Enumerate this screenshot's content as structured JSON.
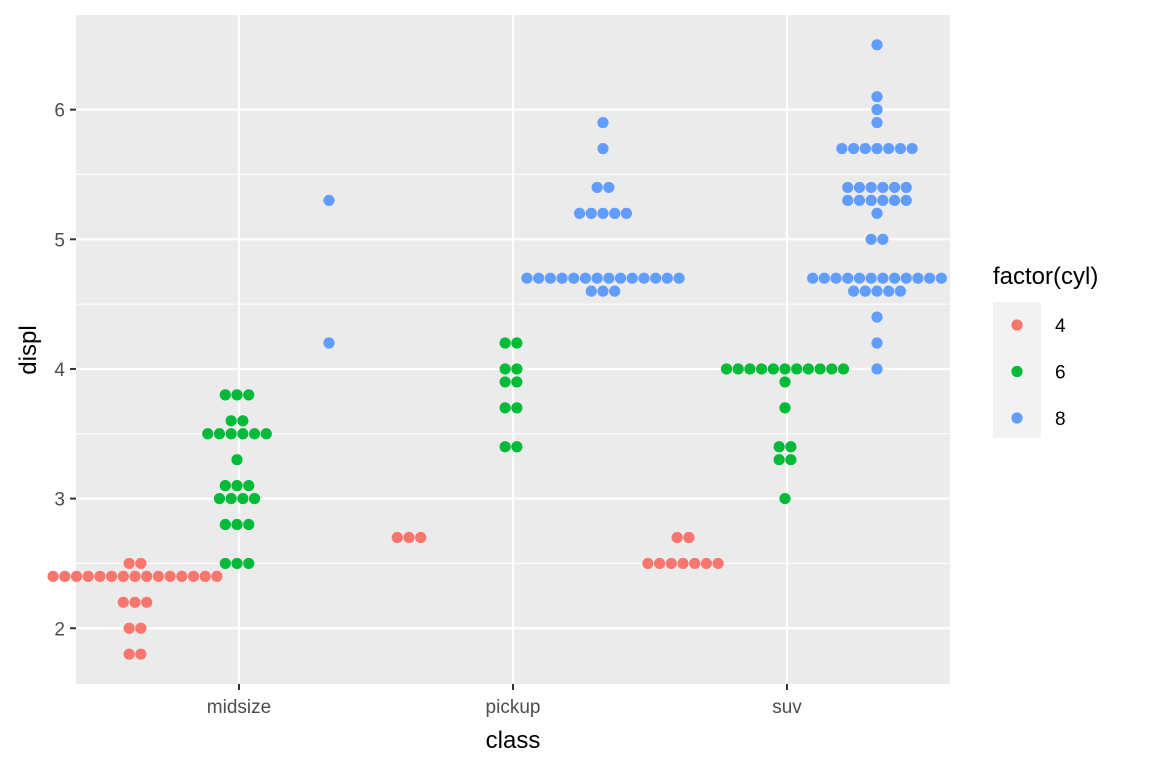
{
  "chart_data": {
    "type": "scatter",
    "subtype": "dotplot",
    "title": "",
    "xlabel": "class",
    "ylabel": "displ",
    "categories": [
      "midsize",
      "pickup",
      "suv"
    ],
    "ylim": [
      1.57,
      6.73
    ],
    "yticks": [
      2,
      3,
      4,
      5,
      6
    ],
    "ytick_labels": [
      "2",
      "3",
      "4",
      "5",
      "6"
    ],
    "grid": true,
    "legend": {
      "title": "factor(cyl)",
      "position": "right",
      "entries": [
        {
          "label": "4",
          "color": "#F8766D"
        },
        {
          "label": "6",
          "color": "#00BA38"
        },
        {
          "label": "8",
          "color": "#619CFF"
        }
      ]
    },
    "series": [
      {
        "name": "4",
        "color": "#F8766D",
        "points": [
          {
            "class": "midsize",
            "y": [
              2.4,
              2.4,
              2.4,
              2.4,
              2.4,
              2.4,
              2.4,
              2.4,
              2.4,
              2.4,
              2.4,
              2.4,
              2.4,
              2.4,
              2.4,
              2.5,
              2.5,
              2.2,
              2.2,
              2.2,
              2.0,
              2.0,
              1.8,
              1.8
            ]
          },
          {
            "class": "pickup",
            "y": [
              2.7,
              2.7,
              2.7
            ]
          },
          {
            "class": "suv",
            "y": [
              2.5,
              2.5,
              2.5,
              2.5,
              2.5,
              2.5,
              2.5,
              2.7,
              2.7
            ]
          }
        ]
      },
      {
        "name": "6",
        "color": "#00BA38",
        "points": [
          {
            "class": "midsize",
            "y": [
              3.8,
              3.8,
              3.8,
              3.6,
              3.6,
              3.5,
              3.5,
              3.5,
              3.5,
              3.5,
              3.5,
              3.3,
              3.1,
              3.1,
              3.1,
              3.0,
              3.0,
              3.0,
              3.0,
              2.8,
              2.8,
              2.8,
              2.5,
              2.5,
              2.5
            ]
          },
          {
            "class": "pickup",
            "y": [
              4.2,
              4.2,
              4.0,
              4.0,
              3.9,
              3.9,
              3.7,
              3.7,
              3.4,
              3.4
            ]
          },
          {
            "class": "suv",
            "y": [
              4.0,
              4.0,
              4.0,
              4.0,
              4.0,
              4.0,
              4.0,
              4.0,
              4.0,
              4.0,
              4.0,
              3.9,
              3.7,
              3.4,
              3.4,
              3.3,
              3.3,
              3.0
            ]
          }
        ]
      },
      {
        "name": "8",
        "color": "#619CFF",
        "points": [
          {
            "class": "midsize",
            "y": [
              5.3,
              4.2
            ]
          },
          {
            "class": "pickup",
            "y": [
              5.9,
              5.7,
              5.4,
              5.4,
              5.2,
              5.2,
              5.2,
              5.2,
              5.2,
              4.7,
              4.7,
              4.7,
              4.7,
              4.7,
              4.7,
              4.7,
              4.7,
              4.7,
              4.7,
              4.7,
              4.7,
              4.7,
              4.7,
              4.6,
              4.6,
              4.6
            ]
          },
          {
            "class": "suv",
            "y": [
              6.5,
              6.1,
              6.0,
              5.9,
              5.7,
              5.7,
              5.7,
              5.7,
              5.7,
              5.7,
              5.7,
              5.4,
              5.4,
              5.4,
              5.4,
              5.4,
              5.4,
              5.3,
              5.3,
              5.3,
              5.3,
              5.3,
              5.3,
              5.2,
              5.0,
              5.0,
              4.7,
              4.7,
              4.7,
              4.7,
              4.7,
              4.7,
              4.7,
              4.7,
              4.7,
              4.7,
              4.7,
              4.7,
              4.6,
              4.6,
              4.6,
              4.6,
              4.6,
              4.4,
              4.2,
              4.0
            ]
          }
        ]
      }
    ]
  }
}
